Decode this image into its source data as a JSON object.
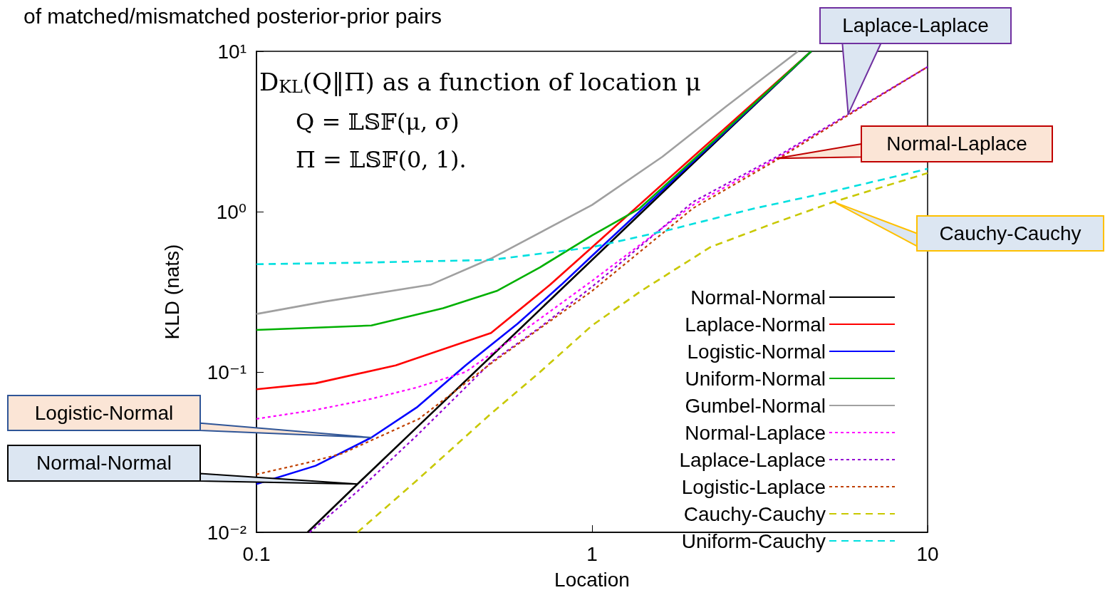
{
  "chart_data": {
    "type": "line",
    "title": "of matched/mismatched posterior-prior pairs",
    "xlabel": "Location",
    "ylabel": "KLD (nats)",
    "log": "xy",
    "legend": "bottom right",
    "xlim": [
      0.1,
      10
    ],
    "ylim": [
      0.01,
      10
    ],
    "xticks": [
      0.1,
      1,
      10
    ],
    "yticks": [
      {
        "value": 0.01,
        "label": "10⁻²"
      },
      {
        "value": 0.1,
        "label": "10⁻¹"
      },
      {
        "value": 1,
        "label": "10⁰"
      },
      {
        "value": 10,
        "label": "10¹"
      }
    ],
    "annotations": [
      "D$_{KL}$(Q‖Π) as a function of location μ",
      "Q = 𝕃𝕊𝔽(μ, σ)",
      "Π = 𝕃𝕊𝔽(0, 1).",
      "Laplace-Laplace",
      "Normal-Laplace",
      "Cauchy-Cauchy",
      "Logistic-Normal",
      "Normal-Normal"
    ],
    "series": [
      {
        "name": "Normal-Normal",
        "color": "#000000",
        "line_style": "solid",
        "x": [
          0.142,
          0.2,
          0.305,
          0.5,
          1,
          2,
          4.5
        ],
        "values": [
          0.01,
          0.02,
          0.0465,
          0.125,
          0.5,
          2,
          10
        ]
      },
      {
        "name": "Laplace-Normal",
        "color": "#ff0000",
        "line_style": "solid",
        "x": [
          0.1,
          0.15,
          0.26,
          0.5,
          0.75,
          1,
          2,
          4.5
        ],
        "values": [
          0.078,
          0.085,
          0.11,
          0.175,
          0.35,
          0.6,
          2.2,
          10
        ]
      },
      {
        "name": "Logistic-Normal",
        "color": "#0000ff",
        "line_style": "solid",
        "x": [
          0.1,
          0.15,
          0.22,
          0.3,
          0.42,
          0.6,
          0.81,
          1,
          2,
          4.5
        ],
        "values": [
          0.02,
          0.026,
          0.039,
          0.06,
          0.11,
          0.2,
          0.35,
          0.53,
          2.05,
          10
        ]
      },
      {
        "name": "Uniform-Normal",
        "color": "#00b000",
        "line_style": "solid",
        "x": [
          0.1,
          0.22,
          0.36,
          0.52,
          0.7,
          1,
          1.38,
          2,
          4.5
        ],
        "values": [
          0.183,
          0.195,
          0.25,
          0.32,
          0.45,
          0.71,
          1.04,
          2.1,
          10
        ]
      },
      {
        "name": "Gumbel-Normal",
        "color": "#a0a0a0",
        "line_style": "solid",
        "x": [
          0.1,
          0.16,
          0.33,
          0.5,
          1,
          1.62,
          2.5,
          4.11
        ],
        "values": [
          0.23,
          0.275,
          0.35,
          0.51,
          1.1,
          2.2,
          4.5,
          10
        ]
      },
      {
        "name": "Normal-Laplace",
        "color": "#ff00ff",
        "line_style": "dotted",
        "x": [
          0.1,
          0.15,
          0.22,
          0.3,
          0.42,
          0.6,
          1,
          2,
          3.55,
          5.8,
          10
        ],
        "values": [
          0.051,
          0.058,
          0.068,
          0.08,
          0.1,
          0.17,
          0.37,
          1.1,
          2.15,
          4.0,
          8
        ]
      },
      {
        "name": "Laplace-Laplace",
        "color": "#9400d3",
        "line_style": "dotted",
        "x": [
          0.144,
          0.2,
          0.3,
          0.5,
          0.7,
          1,
          2,
          3.55,
          5.8,
          10
        ],
        "values": [
          0.01,
          0.018,
          0.04,
          0.115,
          0.19,
          0.34,
          1.15,
          2.2,
          4.06,
          8
        ]
      },
      {
        "name": "Logistic-Laplace",
        "color": "#c04000",
        "line_style": "dotted",
        "x": [
          0.1,
          0.14,
          0.18,
          0.305,
          0.5,
          1,
          2,
          3.55,
          5.8,
          10
        ],
        "values": [
          0.023,
          0.027,
          0.031,
          0.051,
          0.113,
          0.32,
          1.05,
          2.1,
          4.0,
          8
        ]
      },
      {
        "name": "Cauchy-Cauchy",
        "color": "#c8c800",
        "line_style": "dashed",
        "x": [
          0.2,
          0.3,
          0.5,
          0.7,
          1,
          1.4,
          2.25,
          3.5,
          5.25,
          10
        ],
        "values": [
          0.01,
          0.021,
          0.055,
          0.1,
          0.195,
          0.32,
          0.6,
          0.85,
          1.15,
          1.74
        ]
      },
      {
        "name": "Uniform-Cauchy",
        "color": "#00e0e0",
        "line_style": "dashed",
        "x": [
          0.1,
          0.2,
          0.5,
          1,
          1.7,
          3,
          5.07,
          10
        ],
        "values": [
          0.47,
          0.48,
          0.5,
          0.6,
          0.77,
          1.04,
          1.32,
          1.85
        ]
      }
    ]
  }
}
